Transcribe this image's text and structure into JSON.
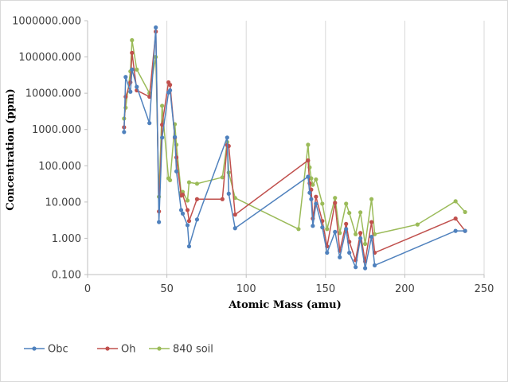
{
  "chart_data": {
    "type": "scatter",
    "xlabel": "Atomic Mass (amu)",
    "ylabel": "Concentration (ppm)",
    "x_axis": {
      "min": 0,
      "max": 250,
      "ticks": [
        0,
        50,
        100,
        150,
        200,
        250
      ],
      "tick_labels": [
        "0",
        "50",
        "100",
        "150",
        "200",
        "250"
      ]
    },
    "y_axis": {
      "scale": "log",
      "min": 0.1,
      "max": 1000000,
      "ticks": [
        0.1,
        1,
        10,
        100,
        1000,
        10000,
        100000,
        1000000
      ],
      "tick_labels": [
        "0.100",
        "1.000",
        "10.000",
        "100.000",
        "1000.000",
        "10000.000",
        "100000.000",
        "1000000.000"
      ]
    },
    "grid": "vertical",
    "legend_position": "bottom-left",
    "series": [
      {
        "name": "Obc",
        "color": "#4f81bd",
        "marker": "circle",
        "points": [
          [
            23,
            850
          ],
          [
            24,
            28000
          ],
          [
            27,
            11000
          ],
          [
            28,
            45000
          ],
          [
            31,
            15000
          ],
          [
            39,
            1500
          ],
          [
            43,
            650000
          ],
          [
            45,
            2.8
          ],
          [
            47,
            600
          ],
          [
            51,
            10500
          ],
          [
            52,
            12000
          ],
          [
            55,
            620
          ],
          [
            56,
            70
          ],
          [
            59,
            6
          ],
          [
            60,
            4.8
          ],
          [
            63,
            2.3
          ],
          [
            64,
            0.6
          ],
          [
            69,
            3.3
          ],
          [
            88,
            600
          ],
          [
            89,
            17
          ],
          [
            93,
            1.9
          ],
          [
            139,
            50
          ],
          [
            140,
            18
          ],
          [
            141,
            12
          ],
          [
            142,
            2.2
          ],
          [
            144,
            9
          ],
          [
            148,
            2
          ],
          [
            151,
            0.4
          ],
          [
            156,
            1.5
          ],
          [
            159,
            0.3
          ],
          [
            163,
            1.8
          ],
          [
            165,
            0.4
          ],
          [
            169,
            0.16
          ],
          [
            172,
            1
          ],
          [
            175,
            0.15
          ],
          [
            179,
            1.1
          ],
          [
            181,
            0.18
          ],
          [
            232,
            1.6
          ],
          [
            238,
            1.6
          ]
        ]
      },
      {
        "name": "Oh",
        "color": "#c0504d",
        "marker": "circle",
        "points": [
          [
            23,
            1150
          ],
          [
            24,
            8000
          ],
          [
            27,
            20000
          ],
          [
            28,
            130000
          ],
          [
            31,
            12000
          ],
          [
            39,
            8000
          ],
          [
            43,
            500000
          ],
          [
            45,
            5.5
          ],
          [
            47,
            1350
          ],
          [
            51,
            20000
          ],
          [
            52,
            17000
          ],
          [
            55,
            600
          ],
          [
            56,
            170
          ],
          [
            59,
            15
          ],
          [
            60,
            16
          ],
          [
            63,
            6
          ],
          [
            64,
            3
          ],
          [
            69,
            12
          ],
          [
            85,
            12
          ],
          [
            88,
            370
          ],
          [
            89,
            350
          ],
          [
            93,
            4.5
          ],
          [
            139,
            140
          ],
          [
            140,
            33
          ],
          [
            141,
            22
          ],
          [
            142,
            3.5
          ],
          [
            144,
            14
          ],
          [
            148,
            3
          ],
          [
            151,
            0.6
          ],
          [
            156,
            9.5
          ],
          [
            159,
            0.45
          ],
          [
            163,
            2.5
          ],
          [
            165,
            0.8
          ],
          [
            169,
            0.25
          ],
          [
            172,
            1.4
          ],
          [
            175,
            0.23
          ],
          [
            179,
            2.8
          ],
          [
            181,
            0.4
          ],
          [
            232,
            3.5
          ],
          [
            238,
            1.6
          ]
        ]
      },
      {
        "name": "840 soil",
        "color": "#9bbb59",
        "marker": "circle",
        "points": [
          [
            23,
            2000
          ],
          [
            24,
            4000
          ],
          [
            27,
            40000
          ],
          [
            28,
            290000
          ],
          [
            31,
            45000
          ],
          [
            39,
            10000
          ],
          [
            43,
            100000
          ],
          [
            45,
            14
          ],
          [
            47,
            4500
          ],
          [
            51,
            45
          ],
          [
            52,
            40
          ],
          [
            55,
            1400
          ],
          [
            56,
            380
          ],
          [
            59,
            18
          ],
          [
            60,
            19
          ],
          [
            63,
            11
          ],
          [
            64,
            35
          ],
          [
            69,
            32
          ],
          [
            85,
            48
          ],
          [
            88,
            450
          ],
          [
            89,
            65
          ],
          [
            93,
            13
          ],
          [
            133,
            1.8
          ],
          [
            139,
            380
          ],
          [
            140,
            90
          ],
          [
            141,
            45
          ],
          [
            142,
            30
          ],
          [
            144,
            42
          ],
          [
            148,
            9
          ],
          [
            151,
            1.8
          ],
          [
            156,
            13
          ],
          [
            159,
            1.4
          ],
          [
            163,
            9
          ],
          [
            165,
            5
          ],
          [
            169,
            1.3
          ],
          [
            172,
            5.2
          ],
          [
            175,
            0.7
          ],
          [
            179,
            12
          ],
          [
            181,
            1.3
          ],
          [
            208,
            2.4
          ],
          [
            232,
            10.5
          ],
          [
            238,
            5.3
          ]
        ]
      }
    ]
  }
}
